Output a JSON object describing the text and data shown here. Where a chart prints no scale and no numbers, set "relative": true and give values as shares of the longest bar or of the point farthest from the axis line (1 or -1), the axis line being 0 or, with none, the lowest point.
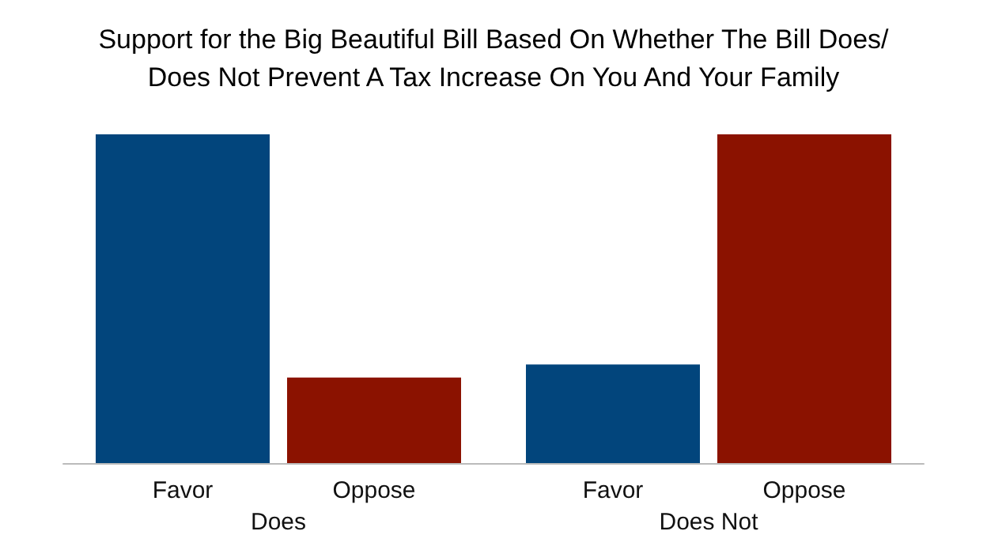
{
  "chart_data": {
    "type": "bar",
    "title": "Support for the Big Beautiful Bill Based On Whether The Bill Does/\nDoes Not Prevent A Tax Increase On You And Your Family",
    "relative": true,
    "categories": [
      "Does",
      "Does Not"
    ],
    "series": [
      {
        "name": "Favor",
        "color": "#02457c",
        "values": [
          1,
          0.3
        ]
      },
      {
        "name": "Oppose",
        "color": "#8b1200",
        "values": [
          0.26,
          1
        ]
      }
    ]
  }
}
